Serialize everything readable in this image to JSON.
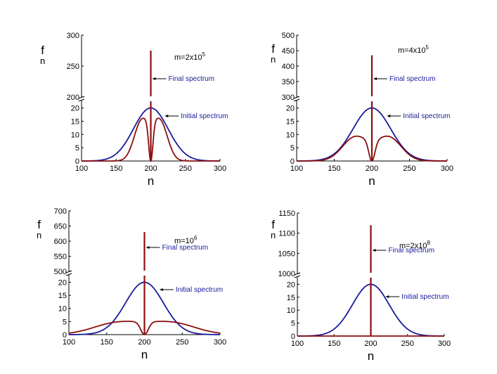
{
  "colors": {
    "initial": "#1a1a9c",
    "final": "#8b0e0e",
    "axis": "#000000"
  },
  "chart_data": [
    {
      "type": "line",
      "title": "m=2x10^5",
      "m_base": "m=2x10",
      "m_exp": "5",
      "xlabel": "n",
      "ylabel": "f",
      "ylabel_sub": "n",
      "xlim": [
        100,
        300
      ],
      "xticks": [
        "100",
        "150",
        "200",
        "250",
        "300"
      ],
      "ylim_lower": [
        0,
        22
      ],
      "yticks_lower": [
        "0",
        "5",
        "10",
        "15",
        "20"
      ],
      "ylim_upper": [
        200,
        300
      ],
      "yticks_upper": [
        "200",
        "250",
        "300"
      ],
      "initial": {
        "name": "Initial spectrum",
        "center": 200,
        "peak": 20,
        "sigma": 25
      },
      "final": {
        "name": "Final spectrum",
        "center": 200,
        "spike_peak": 275,
        "lobe_peak": 15,
        "lobe_offset": 13,
        "lobe_sigma": 11,
        "notch_width": 3
      }
    },
    {
      "type": "line",
      "title": "m=4x10^5",
      "m_base": "m=4x10",
      "m_exp": "5",
      "xlabel": "n",
      "ylabel": "f",
      "ylabel_sub": "n",
      "xlim": [
        100,
        300
      ],
      "xticks": [
        "100",
        "150",
        "200",
        "250",
        "300"
      ],
      "ylim_lower": [
        0,
        22
      ],
      "yticks_lower": [
        "0",
        "5",
        "10",
        "15",
        "20"
      ],
      "ylim_upper": [
        300,
        500
      ],
      "yticks_upper": [
        "300",
        "350",
        "400",
        "450",
        "500"
      ],
      "initial": {
        "name": "Initial spectrum",
        "center": 200,
        "peak": 20,
        "sigma": 25
      },
      "final": {
        "name": "Final spectrum",
        "center": 200,
        "spike_peak": 435,
        "lobe_peak": 9,
        "lobe_offset": 22,
        "lobe_sigma": 17,
        "notch_width": 4
      }
    },
    {
      "type": "line",
      "title": "m=10^6",
      "m_base": "m=10",
      "m_exp": "6",
      "xlabel": "n",
      "ylabel": "f",
      "ylabel_sub": "n",
      "xlim": [
        100,
        300
      ],
      "xticks": [
        "100",
        "150",
        "200",
        "250",
        "300"
      ],
      "ylim_lower": [
        0,
        22
      ],
      "yticks_lower": [
        "0",
        "5",
        "10",
        "15",
        "20"
      ],
      "ylim_upper": [
        500,
        700
      ],
      "yticks_upper": [
        "500",
        "550",
        "600",
        "650",
        "700"
      ],
      "initial": {
        "name": "Initial spectrum",
        "center": 200,
        "peak": 20,
        "sigma": 25
      },
      "final": {
        "name": "Final spectrum",
        "center": 200,
        "spike_peak": 630,
        "lobe_peak": 4.5,
        "lobe_offset": 35,
        "lobe_sigma": 32,
        "notch_width": 5
      }
    },
    {
      "type": "line",
      "title": "m=2x10^8",
      "m_base": "m=2x10",
      "m_exp": "8",
      "xlabel": "n",
      "ylabel": "f",
      "ylabel_sub": "n",
      "xlim": [
        100,
        300
      ],
      "xticks": [
        "100",
        "150",
        "200",
        "250",
        "300"
      ],
      "ylim_lower": [
        0,
        22
      ],
      "yticks_lower": [
        "0",
        "5",
        "10",
        "15",
        "20"
      ],
      "ylim_upper": [
        1000,
        1150
      ],
      "yticks_upper": [
        "1000",
        "1050",
        "1100",
        "1150"
      ],
      "initial": {
        "name": "Initial spectrum",
        "center": 200,
        "peak": 20,
        "sigma": 25
      },
      "final": {
        "name": "Final spectrum",
        "center": 200,
        "spike_peak": 1120,
        "lobe_peak": 0,
        "lobe_offset": 0,
        "lobe_sigma": 1,
        "notch_width": 0
      }
    }
  ]
}
